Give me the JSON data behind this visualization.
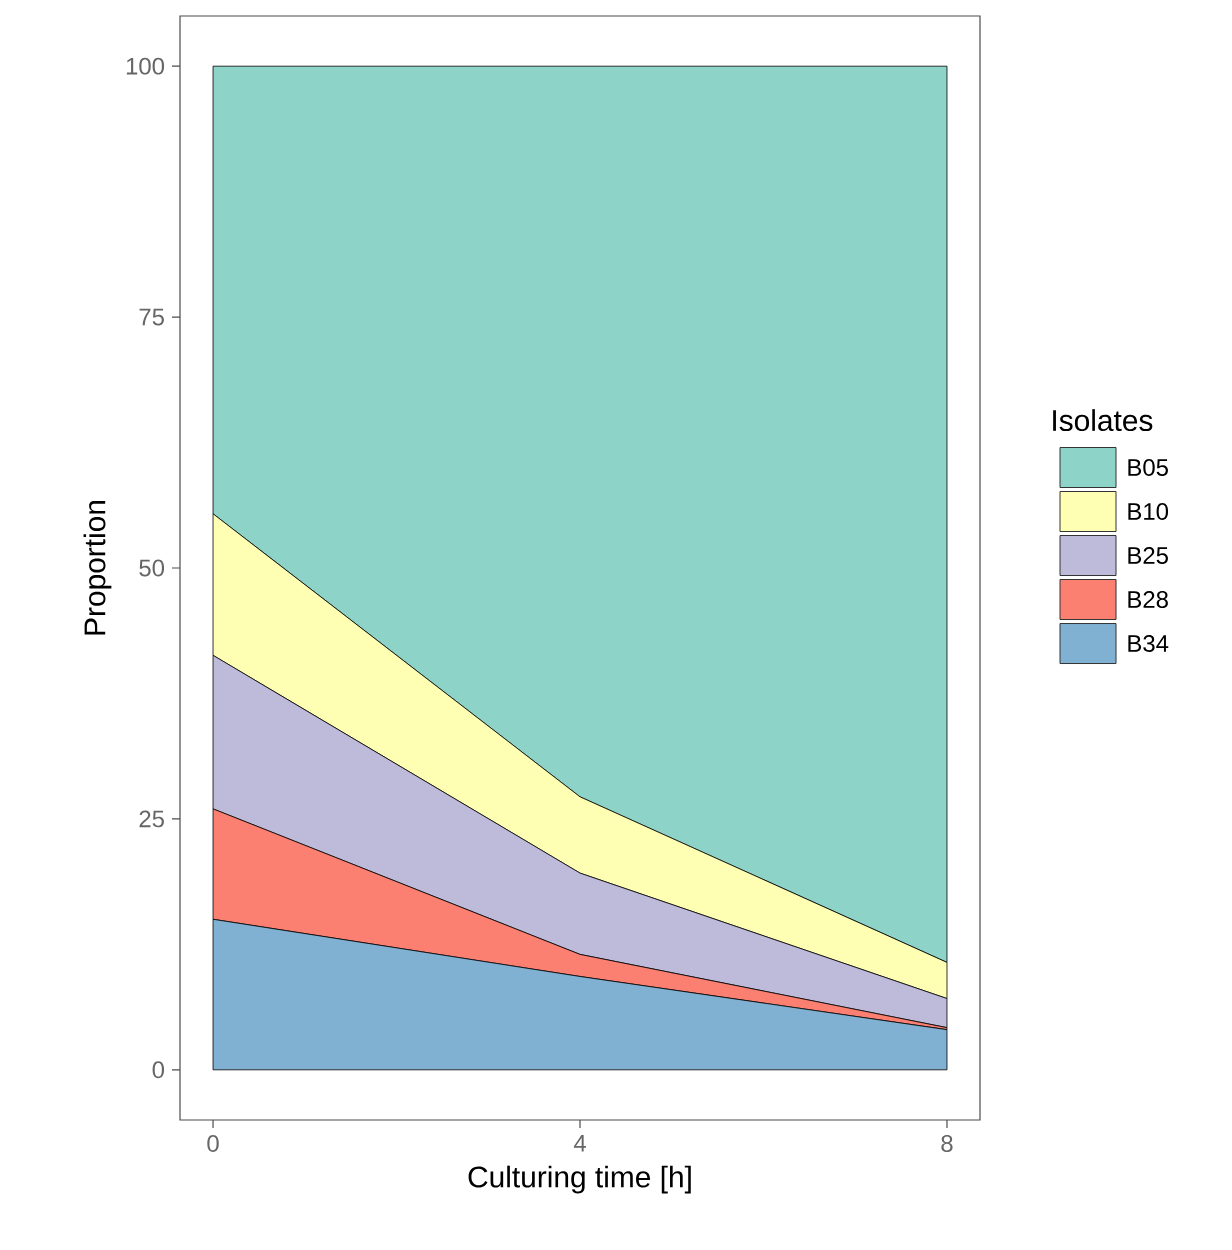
{
  "chart_data": {
    "type": "area",
    "stacked": true,
    "xlabel": "Culturing time [h]",
    "ylabel": "Proportion",
    "legend_title": "Isolates",
    "legend": "right",
    "grid": false,
    "x": [
      0,
      4,
      8
    ],
    "xlim": [
      -0.36,
      8.36
    ],
    "ylim": [
      -5,
      105
    ],
    "xticks": [
      0,
      4,
      8
    ],
    "yticks": [
      0,
      25,
      50,
      75,
      100
    ],
    "series": [
      {
        "name": "B34",
        "color": "#80b1d3",
        "values": [
          15,
          9.3,
          4.0
        ]
      },
      {
        "name": "B28",
        "color": "#fb8072",
        "values": [
          11,
          2.2,
          0.2
        ]
      },
      {
        "name": "B25",
        "color": "#bebada",
        "values": [
          15.3,
          8.1,
          2.9
        ]
      },
      {
        "name": "B10",
        "color": "#ffffb3",
        "values": [
          14.1,
          7.6,
          3.6
        ]
      },
      {
        "name": "B05",
        "color": "#8dd3c7",
        "values": [
          44.6,
          72.8,
          89.3
        ]
      }
    ]
  }
}
